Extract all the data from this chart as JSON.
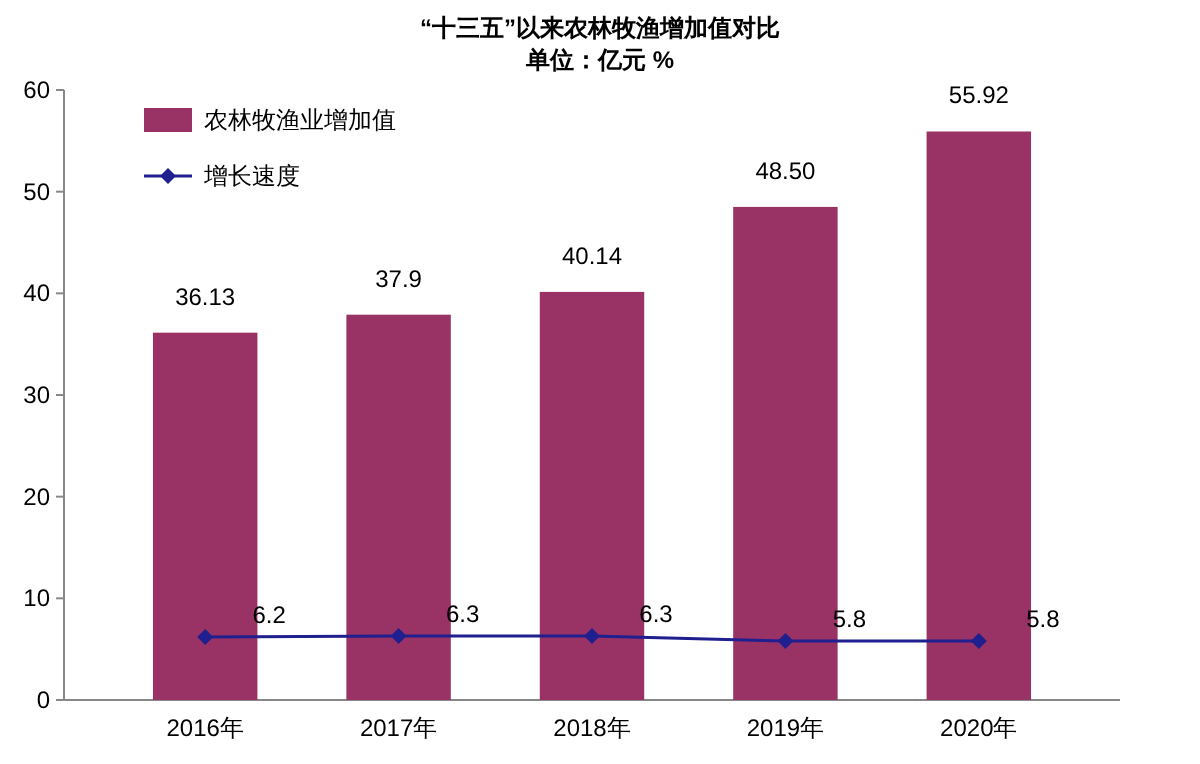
{
  "chart_data": {
    "type": "bar",
    "title": "“十三五”以来农林牧渔增加值对比",
    "subtitle": "单位：亿元     %",
    "categories": [
      "2016年",
      "2017年",
      "2018年",
      "2019年",
      "2020年"
    ],
    "series": [
      {
        "name": "农林牧渔业增加值",
        "color": "#993366",
        "values": [
          36.13,
          37.9,
          40.14,
          48.5,
          55.92
        ],
        "value_labels": [
          "36.13",
          "37.9",
          "40.14",
          "48.50",
          "55.92"
        ]
      },
      {
        "name": "增长速度",
        "type": "line",
        "color": "#1f1f8f",
        "marker": "diamond",
        "values": [
          6.2,
          6.3,
          6.3,
          5.8,
          5.8
        ],
        "value_labels": [
          "6.2",
          "6.3",
          "6.3",
          "5.8",
          "5.8"
        ]
      }
    ],
    "ylim": [
      0,
      60
    ],
    "yticks": [
      0,
      10,
      20,
      30,
      40,
      50,
      60
    ],
    "grid": false,
    "legend": "top left"
  }
}
